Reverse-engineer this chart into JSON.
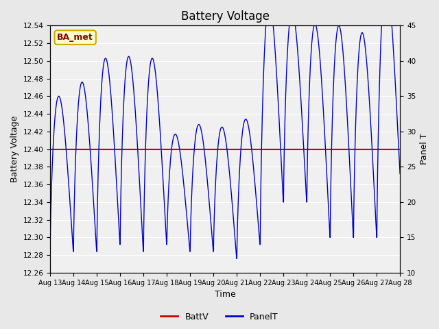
{
  "title": "Battery Voltage",
  "xlabel": "Time",
  "ylabel_left": "Battery Voltage",
  "ylabel_right": "Panel T",
  "ylim_left": [
    12.26,
    12.54
  ],
  "ylim_right": [
    10,
    45
  ],
  "yticks_left": [
    12.26,
    12.28,
    12.3,
    12.32,
    12.34,
    12.36,
    12.38,
    12.4,
    12.42,
    12.44,
    12.46,
    12.48,
    12.5,
    12.52,
    12.54
  ],
  "yticks_right": [
    10,
    15,
    20,
    25,
    30,
    35,
    40,
    45
  ],
  "xtick_labels": [
    "Aug 13",
    "Aug 14",
    "Aug 15",
    "Aug 16",
    "Aug 17",
    "Aug 18",
    "Aug 19",
    "Aug 20",
    "Aug 21",
    "Aug 22",
    "Aug 23",
    "Aug 24",
    "Aug 25",
    "Aug 26",
    "Aug 27",
    "Aug 28"
  ],
  "battv_value": 12.4,
  "battv_color": "#cc0000",
  "panelt_color": "#0000cc",
  "bg_color": "#e8e8e8",
  "plot_bg_color": "#f0f0f0",
  "grid_color": "#ffffff",
  "legend_label_battv": "BattV",
  "legend_label_panelt": "PanelT",
  "annotation_text": "BA_met",
  "annotation_bg": "#ffffcc",
  "annotation_border": "#ccaa00",
  "annotation_text_color": "#880000"
}
